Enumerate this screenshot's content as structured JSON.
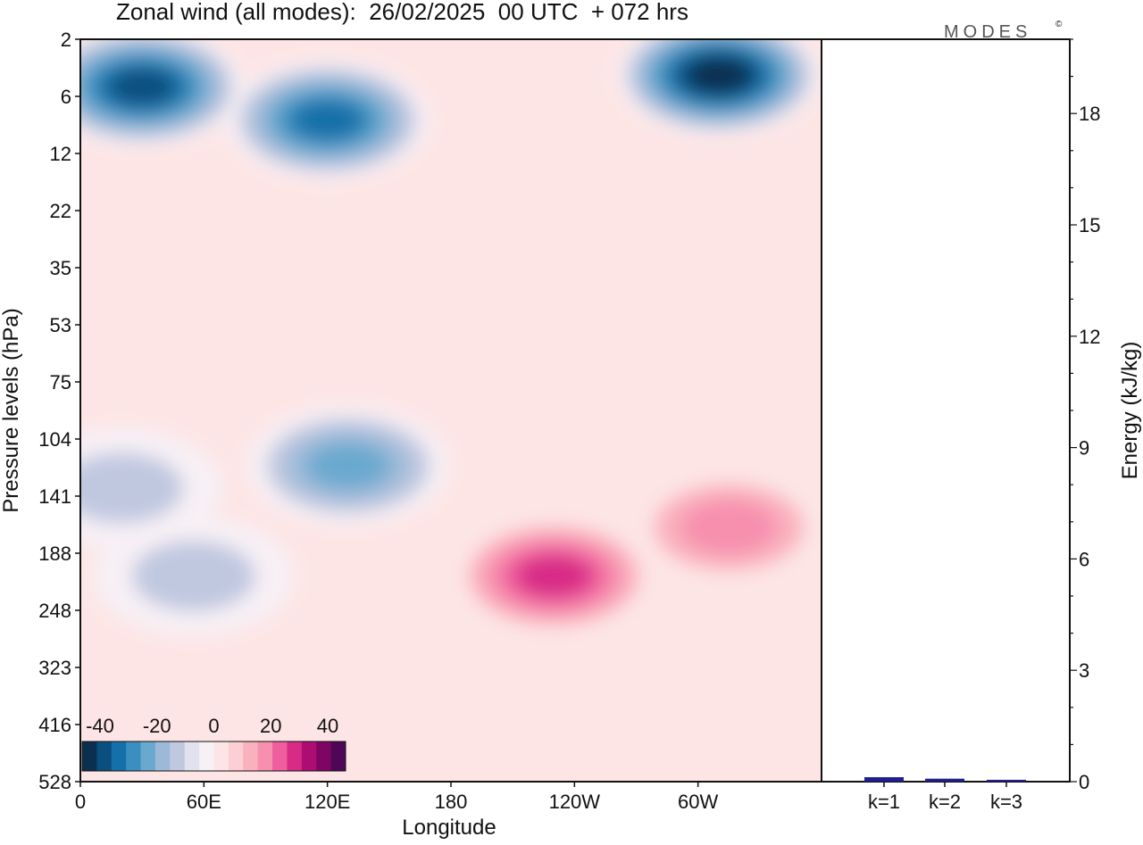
{
  "chart_data": [
    {
      "type": "heatmap",
      "title": "Zonal wind (all modes):  26/02/2025  00 UTC  + 072 hrs",
      "brand": "MODES",
      "brand_mark": "©",
      "xlabel": "Longitude",
      "ylabel": "Pressure levels (hPa)",
      "x_ticks": [
        {
          "lon": 0,
          "label": "0"
        },
        {
          "lon": 60,
          "label": "60E"
        },
        {
          "lon": 120,
          "label": "120E"
        },
        {
          "lon": 180,
          "label": "180"
        },
        {
          "lon": 240,
          "label": "120W"
        },
        {
          "lon": 300,
          "label": "60W"
        }
      ],
      "xlim": [
        0,
        360
      ],
      "y_ticks": [
        "2",
        "6",
        "12",
        "22",
        "35",
        "53",
        "75",
        "104",
        "141",
        "188",
        "248",
        "323",
        "416",
        "528"
      ],
      "colorbar": {
        "min": -40,
        "max": 40,
        "step": 5,
        "labels": [
          "-40",
          "-20",
          "0",
          "20",
          "40"
        ],
        "colors": [
          "#0b2f4f",
          "#0b4f7e",
          "#156fa8",
          "#3a8fc0",
          "#6aa9cf",
          "#9cbad8",
          "#c0c8e0",
          "#e1e2ee",
          "#f7f0f5",
          "#fde5e5",
          "#fbcfd3",
          "#f9b1bd",
          "#f78fae",
          "#ef5e9e",
          "#d82b86",
          "#ad0d72",
          "#7e0563",
          "#4f0656"
        ]
      },
      "features": [
        {
          "lon": 30,
          "level": 5,
          "value": -36
        },
        {
          "lon": 120,
          "level": 8,
          "value": -30
        },
        {
          "lon": 310,
          "level": 4,
          "value": -38
        },
        {
          "lon": 20,
          "level": 45,
          "value": 6
        },
        {
          "lon": 330,
          "level": 45,
          "value": 6
        },
        {
          "lon": 130,
          "level": 120,
          "value": -18
        },
        {
          "lon": 20,
          "level": 135,
          "value": -9
        },
        {
          "lon": 55,
          "level": 210,
          "value": -10
        },
        {
          "lon": 230,
          "level": 210,
          "value": 24
        },
        {
          "lon": 315,
          "level": 165,
          "value": 17
        }
      ]
    },
    {
      "type": "bar",
      "ylabel": "Energy (kJ/kg)",
      "categories": [
        "k=1",
        "k=2",
        "k=3"
      ],
      "values": [
        0.12,
        0.08,
        0.05
      ],
      "ylim": [
        0,
        20
      ],
      "y_ticks": [
        0,
        3,
        6,
        9,
        12,
        15,
        18
      ],
      "bar_color": "#1f1f8f"
    }
  ]
}
